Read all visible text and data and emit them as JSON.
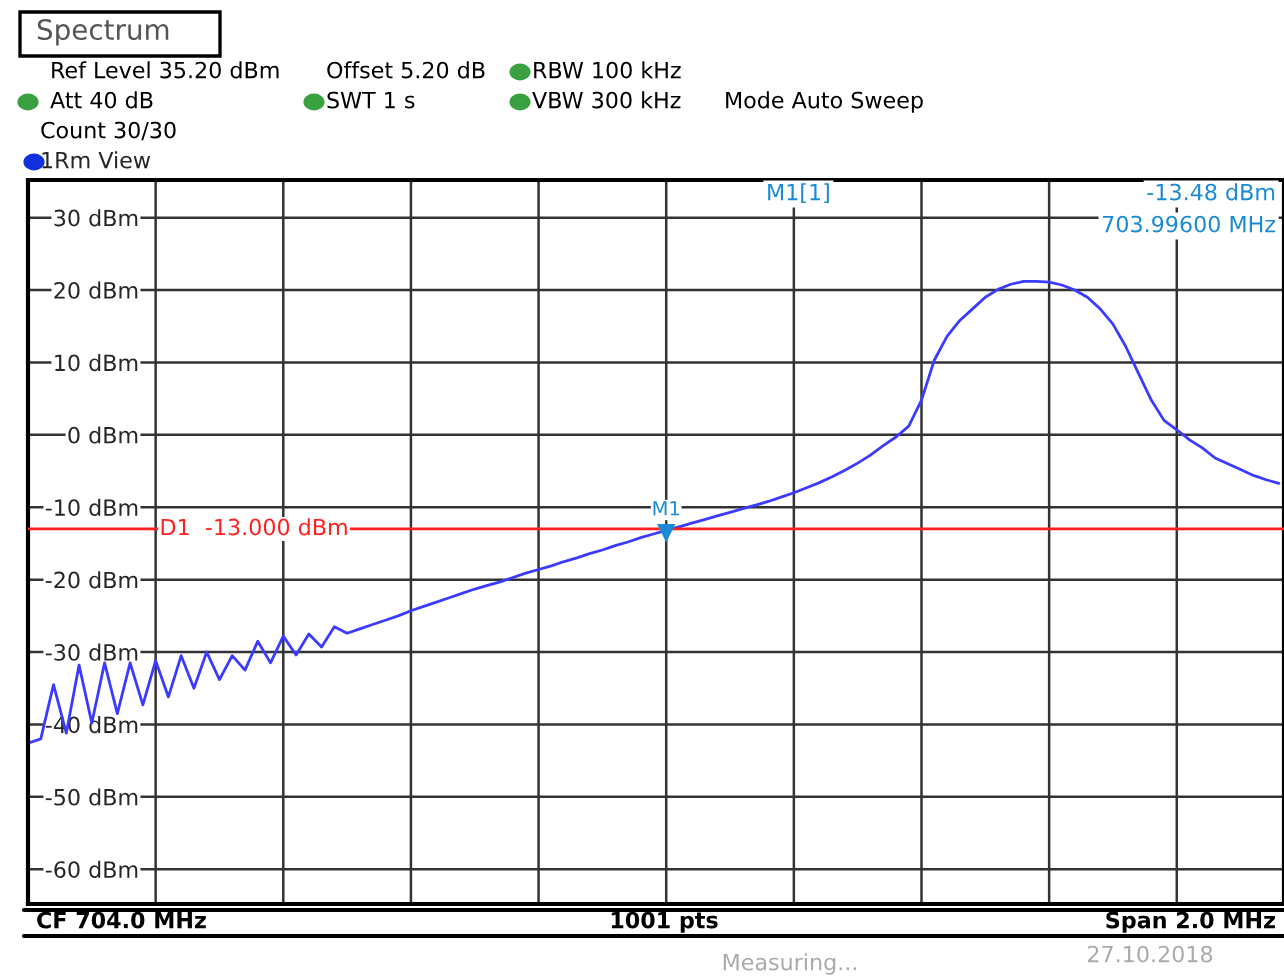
{
  "chart_data": {
    "type": "line",
    "title": "Spectrum",
    "subtitle": "1Rm View",
    "categories": [
      null,
      null,
      null,
      null,
      null,
      null,
      null,
      null,
      null,
      null,
      null,
      null,
      null,
      null,
      null,
      null,
      null,
      null,
      null,
      null,
      null,
      null,
      null,
      null,
      null,
      null,
      null,
      null,
      null,
      null,
      null,
      null,
      null,
      null,
      null,
      null,
      null,
      null,
      null,
      null,
      null,
      null,
      null,
      null,
      null,
      null,
      null,
      null,
      null,
      null,
      null,
      null,
      null,
      null,
      null,
      null,
      null,
      null,
      null,
      null,
      null,
      null,
      null,
      null,
      null,
      null,
      null,
      null,
      null,
      null,
      null,
      null,
      null,
      null,
      null,
      null,
      null,
      null,
      null,
      null,
      null,
      null,
      null,
      null,
      null,
      null,
      null,
      null,
      null,
      null,
      null,
      null,
      null,
      null,
      null,
      null,
      null,
      null,
      null
    ],
    "series": [
      {
        "color": "#3b3bff",
        "values": [
          -42.6,
          -42,
          -34.5,
          -41.2,
          -31.8,
          -39.8,
          -31.5,
          -38.5,
          -31.5,
          -37.3,
          -31.2,
          -36.2,
          -30.5,
          -35,
          -30,
          -33.8,
          -30.5,
          -32.5,
          -28.5,
          -31.5,
          -27.8,
          -30.4,
          -27.5,
          -29.3,
          -26.5,
          -27.4,
          -26.8,
          -26.2,
          -25.6,
          -25,
          -24.3,
          -23.7,
          -23.1,
          -22.5,
          -21.9,
          -21.3,
          -20.8,
          -20.3,
          -19.7,
          -19.1,
          -18.6,
          -18.1,
          -17.5,
          -17,
          -16.4,
          -15.9,
          -15.3,
          -14.8,
          -14.2,
          -13.7,
          -13.2,
          -12.7,
          -12.2,
          -11.7,
          -11.2,
          -10.7,
          -10.2,
          -9.7,
          -9.2,
          -8.6,
          -8,
          -7.3,
          -6.6,
          -5.8,
          -4.9,
          -3.9,
          -2.8,
          -1.5,
          -0.3,
          1.2,
          4.8,
          10.3,
          13.6,
          15.8,
          17.4,
          19,
          20.1,
          20.8,
          21.2,
          21.2,
          21.1,
          20.7,
          20,
          19,
          17.4,
          15.3,
          12.2,
          8.5,
          4.8,
          2,
          0.7,
          -0.7,
          -1.8,
          -3.2,
          -4,
          -4.8,
          -5.6,
          -6.2,
          -6.7
        ]
      }
    ],
    "ylim": [
      -64.8,
      35.2
    ],
    "yticks": [
      {
        "value": 30,
        "label": "30 dBm"
      },
      {
        "value": 20,
        "label": "20 dBm"
      },
      {
        "value": 10,
        "label": "10 dBm"
      },
      {
        "value": 0,
        "label": "0 dBm"
      },
      {
        "value": -10,
        "label": "-10 dBm"
      },
      {
        "value": -20,
        "label": "-20 dBm"
      },
      {
        "value": -30,
        "label": "-30 dBm"
      },
      {
        "value": -40,
        "label": "-40 dBm"
      },
      {
        "value": -50,
        "label": "-50 dBm"
      },
      {
        "value": -60,
        "label": "-60 dBm"
      }
    ],
    "grid": true,
    "tick_labels": "y",
    "marker": "none",
    "line_style": "solid",
    "ref_lines": [
      {
        "axis": "y",
        "value": -13,
        "label": "D1  -13.000 dBm",
        "color": "#ff2020"
      }
    ],
    "annotations": [
      "Ref Level 35.20 dBm",
      "Offset 5.20 dB",
      "RBW 100 kHz",
      "Att 40 dB",
      "SWT 1 s",
      "VBW 300 kHz",
      "Mode Auto Sweep",
      "Count 30/30",
      "M1[1]",
      "-13.48 dBm",
      "703.99600 MHz",
      "CF 704.0 MHz",
      "1001 pts",
      "Span 2.0 MHz",
      "Measuring...",
      "27.10.2018",
      {
        "text": "M1",
        "y": -13.48
      }
    ]
  }
}
